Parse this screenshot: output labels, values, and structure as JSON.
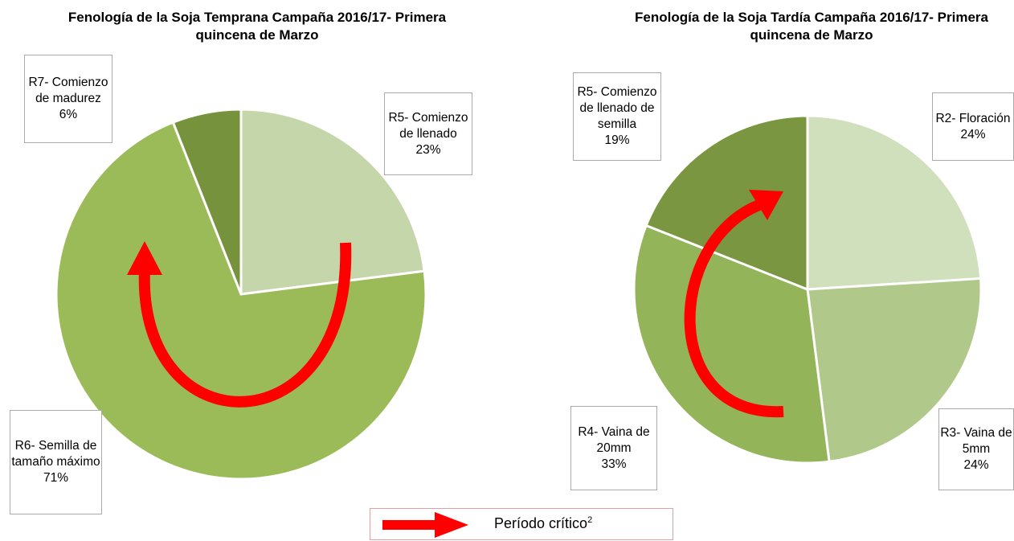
{
  "chart_data": [
    {
      "type": "pie",
      "title": "Fenología de la Soja Temprana Campaña 2016/17- Primera quincena de Marzo",
      "categories": [
        "R5- Comienzo de llenado",
        "R6- Semilla de tamaño máximo",
        "R7- Comienzo de madurez"
      ],
      "values": [
        23,
        71,
        6
      ],
      "value_labels": [
        "23%",
        "71%",
        "6%"
      ],
      "colors": [
        "#c5d6ab",
        "#9bbb59",
        "#76923c"
      ]
    },
    {
      "type": "pie",
      "title": "Fenología de la Soja Tardía Campaña 2016/17- Primera quincena de Marzo",
      "categories": [
        "R2- Floración",
        "R3- Vaina de 5mm",
        "R4- Vaina de 20mm",
        "R5- Comienzo de llenado de semilla"
      ],
      "values": [
        24,
        24,
        33,
        19
      ],
      "value_labels": [
        "24%",
        "24%",
        "33%",
        "19%"
      ],
      "colors": [
        "#d0dfbc",
        "#b0c889",
        "#94b45a",
        "#7a9640"
      ]
    }
  ],
  "legend": {
    "label": "Período crítico",
    "superscript": "2"
  }
}
